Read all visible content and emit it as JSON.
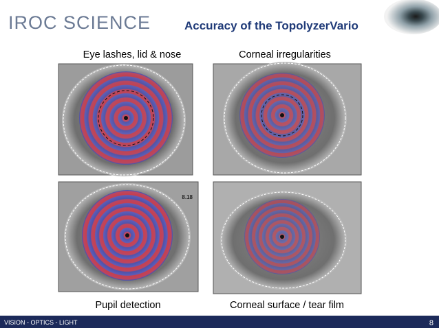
{
  "header": {
    "logo": "IROC SCIENCE",
    "title": "Accuracy of the TopolyzerVario"
  },
  "images": [
    {
      "caption": "Eye lashes, lid & nose"
    },
    {
      "caption": "Corneal irregularities"
    },
    {
      "caption": "Pupil detection",
      "label": "8.18"
    },
    {
      "caption": "Corneal surface / tear film"
    }
  ],
  "footer": {
    "text": "VISION - OPTICS - LIGHT",
    "page": "8"
  }
}
